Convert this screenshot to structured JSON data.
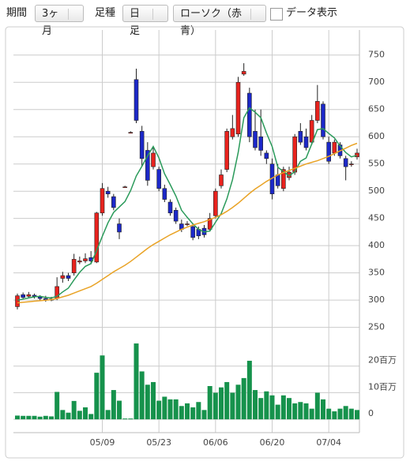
{
  "toolbar": {
    "period_label": "期間",
    "period_value": "3ヶ月",
    "bar_label": "足種",
    "bar_value": "日足",
    "style_value": "ローソク（赤青）",
    "data_toggle": "データ表示"
  },
  "chart_data": {
    "type": "candlestick",
    "categories": [
      null,
      null,
      null,
      null,
      null,
      null,
      null,
      null,
      null,
      null,
      null,
      null,
      null,
      null,
      null,
      "05/09",
      null,
      null,
      null,
      null,
      null,
      null,
      null,
      null,
      null,
      "05/23",
      null,
      null,
      null,
      null,
      null,
      null,
      null,
      null,
      null,
      "06/06",
      null,
      null,
      null,
      null,
      null,
      null,
      null,
      null,
      null,
      "06/20",
      null,
      null,
      null,
      null,
      null,
      null,
      null,
      null,
      null,
      "07/04",
      null,
      null,
      null,
      null,
      null
    ],
    "open": [
      288,
      310,
      307,
      309,
      306,
      303,
      300,
      303,
      340,
      345,
      350,
      370,
      372,
      378,
      370,
      460,
      500,
      490,
      440,
      508,
      608,
      705,
      610,
      575,
      545,
      540,
      505,
      480,
      465,
      440,
      440,
      435,
      430,
      432,
      430,
      455,
      510,
      540,
      600,
      605,
      715,
      680,
      610,
      600,
      570,
      550,
      530,
      505,
      525,
      535,
      610,
      600,
      590,
      630,
      660,
      590,
      570,
      585,
      560,
      550,
      563
    ],
    "high": [
      312,
      314,
      315,
      312,
      309,
      308,
      306,
      342,
      352,
      350,
      385,
      380,
      386,
      390,
      462,
      515,
      508,
      495,
      450,
      510,
      610,
      725,
      620,
      590,
      580,
      545,
      512,
      485,
      470,
      448,
      445,
      440,
      435,
      438,
      460,
      505,
      540,
      615,
      640,
      710,
      735,
      690,
      650,
      650,
      575,
      560,
      550,
      545,
      545,
      605,
      625,
      615,
      640,
      695,
      665,
      600,
      595,
      590,
      565,
      555,
      578
    ],
    "low": [
      283,
      302,
      304,
      303,
      299,
      297,
      298,
      300,
      332,
      335,
      345,
      366,
      368,
      366,
      368,
      455,
      488,
      465,
      412,
      506,
      606,
      625,
      545,
      510,
      540,
      500,
      480,
      455,
      440,
      425,
      436,
      410,
      412,
      415,
      426,
      450,
      505,
      535,
      595,
      600,
      712,
      590,
      575,
      565,
      550,
      485,
      505,
      500,
      520,
      530,
      585,
      575,
      585,
      625,
      595,
      550,
      565,
      560,
      520,
      545,
      558
    ],
    "close": [
      308,
      305,
      310,
      307,
      303,
      300,
      302,
      325,
      345,
      340,
      375,
      372,
      376,
      372,
      460,
      505,
      495,
      470,
      425,
      508,
      608,
      630,
      560,
      520,
      570,
      505,
      485,
      460,
      445,
      430,
      440,
      415,
      418,
      420,
      450,
      500,
      530,
      610,
      615,
      700,
      720,
      600,
      580,
      575,
      560,
      495,
      510,
      540,
      535,
      600,
      590,
      580,
      630,
      665,
      600,
      555,
      590,
      565,
      545,
      550,
      570
    ],
    "up_color": "#e8231e",
    "down_color": "#1c28c8",
    "ma_lines": [
      {
        "color": "#2a9a5a",
        "values": [
          300,
          302,
          304,
          306,
          307,
          305,
          304,
          307,
          315,
          322,
          337,
          351,
          362,
          367,
          391,
          417,
          442,
          461,
          471,
          481,
          501,
          528,
          546,
          565,
          582,
          561,
          532,
          512,
          491,
          465,
          452,
          440,
          430,
          425,
          427,
          443,
          459,
          486,
          521,
          571,
          635,
          653,
          645,
          635,
          607,
          582,
          544,
          536,
          528,
          536,
          555,
          561,
          587,
          613,
          615,
          606,
          598,
          583,
          571,
          563,
          566
        ]
      },
      {
        "color": "#e9a326",
        "values": [
          295,
          296,
          297,
          298,
          299,
          300,
          301,
          303,
          306,
          309,
          313,
          317,
          321,
          325,
          331,
          338,
          345,
          352,
          358,
          364,
          371,
          379,
          387,
          395,
          402,
          408,
          414,
          420,
          425,
          430,
          434,
          438,
          441,
          444,
          448,
          452,
          457,
          463,
          470,
          478,
          487,
          496,
          504,
          511,
          518,
          524,
          530,
          534,
          538,
          542,
          546,
          550,
          553,
          556,
          560,
          564,
          569,
          574,
          579,
          584,
          588
        ]
      }
    ],
    "ylim": [
      235,
      796
    ],
    "yticks": [
      250,
      300,
      350,
      400,
      450,
      500,
      550,
      600,
      650,
      700,
      750
    ],
    "volume": {
      "color": "#16924c",
      "values": [
        1.4,
        1.3,
        1.3,
        1.3,
        1.0,
        1.3,
        1.1,
        10.3,
        3.5,
        2.5,
        6.9,
        3.2,
        4.5,
        2,
        17.5,
        24,
        3.5,
        11,
        7,
        0.3,
        0.3,
        28.5,
        18,
        13,
        14,
        7,
        8.5,
        7.5,
        7.5,
        5,
        6,
        4.5,
        6.5,
        3.5,
        12.5,
        10,
        12,
        14,
        10,
        13,
        15.5,
        22,
        11,
        8,
        10.5,
        9,
        5.5,
        9,
        8,
        6,
        6.5,
        6,
        4,
        10,
        7.5,
        4,
        3,
        4,
        5,
        4,
        3.5
      ]
    },
    "volume_ylim": [
      -5,
      30
    ],
    "volume_ticks": [
      0,
      {
        "value": 10,
        "label": "10百万"
      },
      {
        "value": 20,
        "label": "20百万"
      }
    ]
  }
}
